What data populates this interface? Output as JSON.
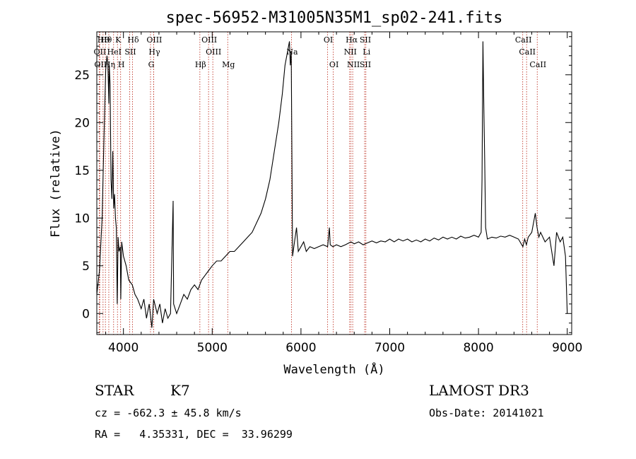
{
  "chart_data": {
    "type": "line",
    "title": "spec-56952-M31005N35M1_sp02-241.fits",
    "xlabel": "Wavelength (Å)",
    "ylabel": "Flux (relative)",
    "xlim": [
      3700,
      9050
    ],
    "ylim": [
      -2.2,
      29.5
    ],
    "xticks": [
      4000,
      5000,
      6000,
      7000,
      8000,
      9000
    ],
    "yticks": [
      0,
      5,
      10,
      15,
      20,
      25
    ],
    "grid": false,
    "series": [
      {
        "name": "flux",
        "points": [
          [
            3700,
            2.0
          ],
          [
            3730,
            4.5
          ],
          [
            3760,
            10.0
          ],
          [
            3780,
            18.0
          ],
          [
            3800,
            25.5
          ],
          [
            3815,
            27.0
          ],
          [
            3825,
            26.0
          ],
          [
            3835,
            22.0
          ],
          [
            3840,
            26.0
          ],
          [
            3850,
            24.0
          ],
          [
            3860,
            14.0
          ],
          [
            3870,
            12.0
          ],
          [
            3880,
            17.0
          ],
          [
            3890,
            11.0
          ],
          [
            3900,
            12.5
          ],
          [
            3910,
            10.0
          ],
          [
            3920,
            9.0
          ],
          [
            3930,
            1.0
          ],
          [
            3940,
            8.0
          ],
          [
            3950,
            6.5
          ],
          [
            3965,
            7.0
          ],
          [
            3970,
            1.5
          ],
          [
            3980,
            7.5
          ],
          [
            4000,
            6.0
          ],
          [
            4030,
            5.0
          ],
          [
            4060,
            3.5
          ],
          [
            4100,
            3.0
          ],
          [
            4130,
            2.0
          ],
          [
            4160,
            1.5
          ],
          [
            4200,
            0.5
          ],
          [
            4230,
            1.5
          ],
          [
            4260,
            -0.5
          ],
          [
            4290,
            1.0
          ],
          [
            4320,
            -1.5
          ],
          [
            4340,
            1.5
          ],
          [
            4380,
            0.0
          ],
          [
            4410,
            1.0
          ],
          [
            4440,
            -1.0
          ],
          [
            4470,
            0.5
          ],
          [
            4500,
            -0.5
          ],
          [
            4530,
            0.0
          ],
          [
            4560,
            11.8
          ],
          [
            4565,
            1.0
          ],
          [
            4600,
            0.0
          ],
          [
            4640,
            1.0
          ],
          [
            4680,
            2.0
          ],
          [
            4720,
            1.5
          ],
          [
            4760,
            2.5
          ],
          [
            4800,
            3.0
          ],
          [
            4840,
            2.5
          ],
          [
            4880,
            3.5
          ],
          [
            4920,
            4.0
          ],
          [
            4960,
            4.5
          ],
          [
            5000,
            5.0
          ],
          [
            5050,
            5.5
          ],
          [
            5100,
            5.5
          ],
          [
            5150,
            6.0
          ],
          [
            5200,
            6.5
          ],
          [
            5250,
            6.5
          ],
          [
            5300,
            7.0
          ],
          [
            5350,
            7.5
          ],
          [
            5400,
            8.0
          ],
          [
            5450,
            8.5
          ],
          [
            5500,
            9.5
          ],
          [
            5550,
            10.5
          ],
          [
            5600,
            12.0
          ],
          [
            5650,
            14.0
          ],
          [
            5700,
            17.0
          ],
          [
            5750,
            20.0
          ],
          [
            5790,
            23.0
          ],
          [
            5820,
            26.0
          ],
          [
            5850,
            27.5
          ],
          [
            5870,
            28.5
          ],
          [
            5880,
            26.0
          ],
          [
            5890,
            27.5
          ],
          [
            5900,
            14.0
          ],
          [
            5905,
            6.0
          ],
          [
            5920,
            7.0
          ],
          [
            5950,
            9.0
          ],
          [
            5970,
            6.5
          ],
          [
            6000,
            7.0
          ],
          [
            6030,
            7.5
          ],
          [
            6060,
            6.5
          ],
          [
            6100,
            7.0
          ],
          [
            6150,
            6.8
          ],
          [
            6200,
            7.0
          ],
          [
            6250,
            7.2
          ],
          [
            6300,
            7.0
          ],
          [
            6320,
            9.0
          ],
          [
            6330,
            7.2
          ],
          [
            6360,
            7.0
          ],
          [
            6400,
            7.2
          ],
          [
            6450,
            7.0
          ],
          [
            6500,
            7.2
          ],
          [
            6563,
            7.5
          ],
          [
            6600,
            7.3
          ],
          [
            6650,
            7.5
          ],
          [
            6700,
            7.2
          ],
          [
            6750,
            7.4
          ],
          [
            6800,
            7.6
          ],
          [
            6850,
            7.4
          ],
          [
            6900,
            7.6
          ],
          [
            6950,
            7.5
          ],
          [
            7000,
            7.8
          ],
          [
            7050,
            7.5
          ],
          [
            7100,
            7.8
          ],
          [
            7150,
            7.6
          ],
          [
            7200,
            7.8
          ],
          [
            7250,
            7.5
          ],
          [
            7300,
            7.7
          ],
          [
            7350,
            7.5
          ],
          [
            7400,
            7.8
          ],
          [
            7450,
            7.6
          ],
          [
            7500,
            7.9
          ],
          [
            7550,
            7.7
          ],
          [
            7600,
            8.0
          ],
          [
            7650,
            7.8
          ],
          [
            7700,
            8.0
          ],
          [
            7750,
            7.8
          ],
          [
            7800,
            8.1
          ],
          [
            7850,
            7.9
          ],
          [
            7900,
            8.0
          ],
          [
            7950,
            8.2
          ],
          [
            8000,
            8.0
          ],
          [
            8030,
            8.5
          ],
          [
            8040,
            14.0
          ],
          [
            8050,
            28.5
          ],
          [
            8060,
            22.0
          ],
          [
            8070,
            16.0
          ],
          [
            8080,
            9.0
          ],
          [
            8100,
            7.8
          ],
          [
            8150,
            8.0
          ],
          [
            8200,
            7.9
          ],
          [
            8250,
            8.1
          ],
          [
            8300,
            8.0
          ],
          [
            8350,
            8.2
          ],
          [
            8400,
            8.0
          ],
          [
            8450,
            7.8
          ],
          [
            8500,
            7.0
          ],
          [
            8520,
            7.8
          ],
          [
            8540,
            7.2
          ],
          [
            8560,
            8.0
          ],
          [
            8600,
            8.5
          ],
          [
            8640,
            10.5
          ],
          [
            8660,
            9.0
          ],
          [
            8680,
            8.0
          ],
          [
            8700,
            8.5
          ],
          [
            8750,
            7.5
          ],
          [
            8800,
            8.0
          ],
          [
            8850,
            5.0
          ],
          [
            8880,
            8.5
          ],
          [
            8920,
            7.5
          ],
          [
            8950,
            8.0
          ],
          [
            8980,
            6.0
          ],
          [
            9000,
            0.0
          ]
        ]
      }
    ],
    "line_marks": [
      {
        "lambda": 3770,
        "label": "HЭ",
        "row": 0
      },
      {
        "lambda": 3797,
        "label": "Hθ",
        "row": 0
      },
      {
        "lambda": 3933,
        "label": "K",
        "row": 0
      },
      {
        "lambda": 4102,
        "label": "Hδ",
        "row": 0
      },
      {
        "lambda": 4340,
        "label": "OIII",
        "row": 0
      },
      {
        "lambda": 4959,
        "label": "OIII",
        "row": 0
      },
      {
        "lambda": 6300,
        "label": "OI",
        "row": 0
      },
      {
        "lambda": 6563,
        "label": "Hα",
        "row": 0
      },
      {
        "lambda": 6717,
        "label": "SII",
        "row": 0
      },
      {
        "lambda": 8498,
        "label": "CaII",
        "row": 0
      },
      {
        "lambda": 3727,
        "label": "OII",
        "row": 1
      },
      {
        "lambda": 3889,
        "label": "HeI",
        "row": 1
      },
      {
        "lambda": 4070,
        "label": "SII",
        "row": 1
      },
      {
        "lambda": 4341,
        "label": "Hγ",
        "row": 1
      },
      {
        "lambda": 5007,
        "label": "OIII",
        "row": 1
      },
      {
        "lambda": 5893,
        "label": "Na",
        "row": 1
      },
      {
        "lambda": 6548,
        "label": "NII",
        "row": 1
      },
      {
        "lambda": 6731,
        "label": "Li",
        "row": 1
      },
      {
        "lambda": 8542,
        "label": "CaII",
        "row": 1
      },
      {
        "lambda": 3734,
        "label": "OII",
        "row": 2
      },
      {
        "lambda": 3835,
        "label": "Hη",
        "row": 2
      },
      {
        "lambda": 3968,
        "label": "H",
        "row": 2
      },
      {
        "lambda": 4305,
        "label": "G",
        "row": 2
      },
      {
        "lambda": 4861,
        "label": "Hβ",
        "row": 2
      },
      {
        "lambda": 5175,
        "label": "Mg",
        "row": 2
      },
      {
        "lambda": 6364,
        "label": "OI",
        "row": 2
      },
      {
        "lambda": 6583,
        "label": "NII",
        "row": 2
      },
      {
        "lambda": 6717,
        "label": "SII",
        "row": 2
      },
      {
        "lambda": 8662,
        "label": "CaII",
        "row": 2
      }
    ]
  },
  "info": {
    "object_class": "STAR",
    "subclass": "K7",
    "survey": "LAMOST DR3",
    "cz": "cz = -662.3 ± 45.8 km/s",
    "obs_date": "Obs-Date: 20141021",
    "radec": "RA =   4.35331, DEC =  33.96299"
  }
}
